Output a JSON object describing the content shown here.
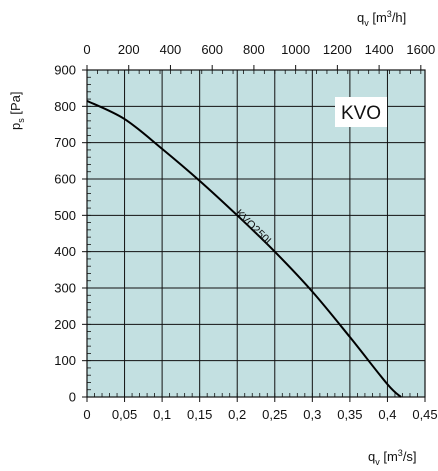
{
  "chart_data": {
    "type": "line",
    "badge": "KVO",
    "x_bottom": {
      "quantity": "q",
      "subscript": "v",
      "unit_prefix": " [m",
      "unit_sup": "3",
      "unit_suffix": "/s]",
      "ticks": [
        "0",
        "0,05",
        "0,1",
        "0,15",
        "0,2",
        "0,25",
        "0,3",
        "0,35",
        "0,4",
        "0,45"
      ],
      "tick_values": [
        0,
        0.05,
        0.1,
        0.15,
        0.2,
        0.25,
        0.3,
        0.35,
        0.4,
        0.45
      ],
      "range": [
        0,
        0.45
      ]
    },
    "x_top": {
      "quantity": "q",
      "subscript": "v",
      "unit_prefix": " [m",
      "unit_sup": "3",
      "unit_suffix": "/h]",
      "ticks": [
        "0",
        "200",
        "400",
        "600",
        "800",
        "1000",
        "1200",
        "1400",
        "1600"
      ],
      "tick_values": [
        0,
        200,
        400,
        600,
        800,
        1000,
        1200,
        1400,
        1600
      ],
      "range": [
        0,
        1620
      ]
    },
    "y": {
      "quantity": "p",
      "subscript": "s",
      "unit": " [Pa]",
      "ticks": [
        "0",
        "100",
        "200",
        "300",
        "400",
        "500",
        "600",
        "700",
        "800",
        "900"
      ],
      "tick_values": [
        0,
        100,
        200,
        300,
        400,
        500,
        600,
        700,
        800,
        900
      ],
      "range": [
        0,
        900
      ]
    },
    "grid": true,
    "series": [
      {
        "name": "KVO250L",
        "x": [
          0,
          0.05,
          0.1,
          0.15,
          0.2,
          0.25,
          0.3,
          0.35,
          0.4,
          0.418
        ],
        "y": [
          815,
          765,
          683,
          595,
          500,
          400,
          290,
          165,
          35,
          0
        ]
      }
    ],
    "colors": {
      "plot_background": "#c3e0e1",
      "grid": "#111111",
      "curve": "#000000"
    }
  }
}
